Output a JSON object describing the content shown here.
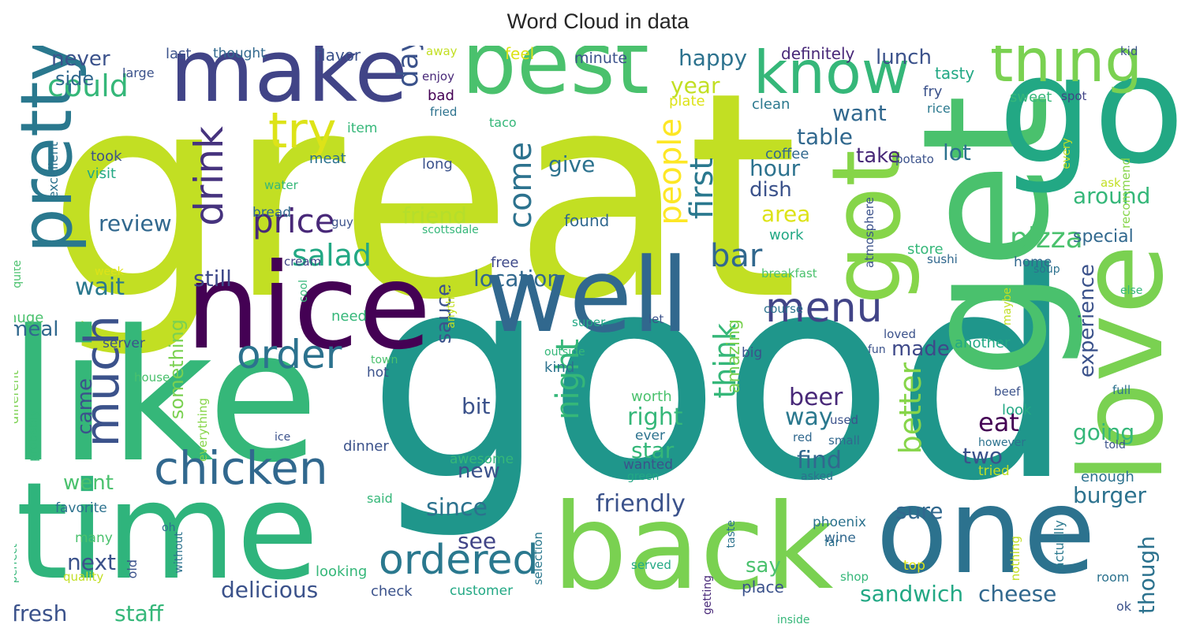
{
  "chart_data": {
    "type": "wordcloud",
    "title": "Word Cloud in data",
    "background": "#ffffff",
    "colormap": "viridis",
    "words": [
      {
        "text": "great",
        "weight": 1.0,
        "color": "#c2df23"
      },
      {
        "text": "good",
        "weight": 0.98,
        "color": "#1f968b"
      },
      {
        "text": "like",
        "weight": 0.62,
        "color": "#35b779"
      },
      {
        "text": "get",
        "weight": 0.58,
        "color": "#4ac16d"
      },
      {
        "text": "go",
        "weight": 0.5,
        "color": "#22a884"
      },
      {
        "text": "nice",
        "weight": 0.5,
        "color": "#440154"
      },
      {
        "text": "time",
        "weight": 0.5,
        "color": "#2fb47c"
      },
      {
        "text": "one",
        "weight": 0.48,
        "color": "#2c728e"
      },
      {
        "text": "back",
        "weight": 0.45,
        "color": "#7ad151"
      },
      {
        "text": "well",
        "weight": 0.42,
        "color": "#31688e"
      },
      {
        "text": "make",
        "weight": 0.4,
        "color": "#414487"
      },
      {
        "text": "best",
        "weight": 0.4,
        "color": "#4ac16d"
      },
      {
        "text": "love",
        "weight": 0.38,
        "color": "#7ad151"
      },
      {
        "text": "got",
        "weight": 0.36,
        "color": "#86d549"
      },
      {
        "text": "know",
        "weight": 0.24,
        "color": "#35b779"
      },
      {
        "text": "thing",
        "weight": 0.24,
        "color": "#7ad151"
      },
      {
        "text": "pretty",
        "weight": 0.2,
        "color": "#2a788e"
      },
      {
        "text": "much",
        "weight": 0.2,
        "color": "#3b528b"
      },
      {
        "text": "try",
        "weight": 0.18,
        "color": "#dde318"
      },
      {
        "text": "chicken",
        "weight": 0.18,
        "color": "#31688e"
      },
      {
        "text": "drink",
        "weight": 0.16,
        "color": "#46337e"
      },
      {
        "text": "ordered",
        "weight": 0.16,
        "color": "#2a788e"
      },
      {
        "text": "order",
        "weight": 0.14,
        "color": "#2c728e"
      },
      {
        "text": "menu",
        "weight": 0.14,
        "color": "#414487"
      },
      {
        "text": "could",
        "weight": 0.12,
        "color": "#35b779"
      },
      {
        "text": "price",
        "weight": 0.12,
        "color": "#482878"
      },
      {
        "text": "salad",
        "weight": 0.12,
        "color": "#22a884"
      },
      {
        "text": "bar",
        "weight": 0.12,
        "color": "#31688e"
      },
      {
        "text": "people",
        "weight": 0.12,
        "color": "#fde725"
      },
      {
        "text": "first",
        "weight": 0.12,
        "color": "#2a788e"
      },
      {
        "text": "pizza",
        "weight": 0.11,
        "color": "#4ac16d"
      },
      {
        "text": "think",
        "weight": 0.11,
        "color": "#35b779"
      },
      {
        "text": "night",
        "weight": 0.11,
        "color": "#35b779"
      },
      {
        "text": "better",
        "weight": 0.11,
        "color": "#86d549"
      },
      {
        "text": "come",
        "weight": 0.1,
        "color": "#2c728e"
      },
      {
        "text": "day",
        "weight": 0.09,
        "color": "#3b528b"
      },
      {
        "text": "friendly",
        "weight": 0.09,
        "color": "#3b528b"
      },
      {
        "text": "delicious",
        "weight": 0.08,
        "color": "#3b528b"
      },
      {
        "text": "sandwich",
        "weight": 0.08,
        "color": "#22a884"
      },
      {
        "text": "cheese",
        "weight": 0.08,
        "color": "#31688e"
      },
      {
        "text": "since",
        "weight": 0.08,
        "color": "#2c728e"
      },
      {
        "text": "happy",
        "weight": 0.08,
        "color": "#2c728e"
      },
      {
        "text": "lunch",
        "weight": 0.08,
        "color": "#3b528b"
      },
      {
        "text": "never",
        "weight": 0.08,
        "color": "#3b528b"
      },
      {
        "text": "side",
        "weight": 0.07,
        "color": "#31688e"
      },
      {
        "text": "want",
        "weight": 0.08,
        "color": "#31688e"
      },
      {
        "text": "table",
        "weight": 0.08,
        "color": "#31688e"
      },
      {
        "text": "year",
        "weight": 0.08,
        "color": "#c2df23"
      },
      {
        "text": "give",
        "weight": 0.08,
        "color": "#2c728e"
      },
      {
        "text": "friend",
        "weight": 0.08,
        "color": "#b5de2b"
      },
      {
        "text": "review",
        "weight": 0.08,
        "color": "#31688e"
      },
      {
        "text": "wait",
        "weight": 0.08,
        "color": "#2a788e"
      },
      {
        "text": "still",
        "weight": 0.08,
        "color": "#3e4989"
      },
      {
        "text": "location",
        "weight": 0.08,
        "color": "#31688e"
      },
      {
        "text": "hour",
        "weight": 0.08,
        "color": "#2c728e"
      },
      {
        "text": "lot",
        "weight": 0.08,
        "color": "#2c728e"
      },
      {
        "text": "take",
        "weight": 0.07,
        "color": "#482878"
      },
      {
        "text": "dish",
        "weight": 0.07,
        "color": "#3b528b"
      },
      {
        "text": "area",
        "weight": 0.08,
        "color": "#dde318"
      },
      {
        "text": "around",
        "weight": 0.08,
        "color": "#35b779"
      },
      {
        "text": "special",
        "weight": 0.06,
        "color": "#31688e"
      },
      {
        "text": "experience",
        "weight": 0.08,
        "color": "#3b528b"
      },
      {
        "text": "beer",
        "weight": 0.08,
        "color": "#482878"
      },
      {
        "text": "way",
        "weight": 0.08,
        "color": "#2a788e"
      },
      {
        "text": "eat",
        "weight": 0.08,
        "color": "#440154"
      },
      {
        "text": "going",
        "weight": 0.08,
        "color": "#35b779"
      },
      {
        "text": "two",
        "weight": 0.08,
        "color": "#3b528b"
      },
      {
        "text": "find",
        "weight": 0.08,
        "color": "#31688e"
      },
      {
        "text": "right",
        "weight": 0.08,
        "color": "#35b779"
      },
      {
        "text": "star",
        "weight": 0.08,
        "color": "#35b779"
      },
      {
        "text": "bit",
        "weight": 0.08,
        "color": "#3b528b"
      },
      {
        "text": "made",
        "weight": 0.07,
        "color": "#3e4989"
      },
      {
        "text": "burger",
        "weight": 0.08,
        "color": "#2c728e"
      },
      {
        "text": "sure",
        "weight": 0.08,
        "color": "#31688e"
      },
      {
        "text": "though",
        "weight": 0.07,
        "color": "#2c728e"
      },
      {
        "text": "came",
        "weight": 0.07,
        "color": "#3b528b"
      },
      {
        "text": "went",
        "weight": 0.07,
        "color": "#4ac16d"
      },
      {
        "text": "sauce",
        "weight": 0.07,
        "color": "#3b528b"
      },
      {
        "text": "something",
        "weight": 0.07,
        "color": "#7ad151"
      },
      {
        "text": "amazing",
        "weight": 0.07,
        "color": "#7ad151"
      },
      {
        "text": "new",
        "weight": 0.07,
        "color": "#3b528b"
      },
      {
        "text": "see",
        "weight": 0.07,
        "color": "#414487"
      },
      {
        "text": "next",
        "weight": 0.07,
        "color": "#3b528b"
      },
      {
        "text": "fresh",
        "weight": 0.07,
        "color": "#3b528b"
      },
      {
        "text": "staff",
        "weight": 0.07,
        "color": "#35b779"
      },
      {
        "text": "say",
        "weight": 0.07,
        "color": "#4ac16d"
      },
      {
        "text": "meal",
        "weight": 0.07,
        "color": "#31688e"
      },
      {
        "text": "place",
        "weight": 0.05,
        "color": "#3b528b"
      },
      {
        "text": "definitely",
        "weight": 0.05,
        "color": "#482878"
      },
      {
        "text": "flavor",
        "weight": 0.05,
        "color": "#3b528b"
      },
      {
        "text": "last",
        "weight": 0.05,
        "color": "#3b528b"
      },
      {
        "text": "thought",
        "weight": 0.04,
        "color": "#31688e"
      },
      {
        "text": "minute",
        "weight": 0.05,
        "color": "#3b528b"
      },
      {
        "text": "feel",
        "weight": 0.05,
        "color": "#dde318"
      },
      {
        "text": "away",
        "weight": 0.04,
        "color": "#c2df23"
      },
      {
        "text": "large",
        "weight": 0.04,
        "color": "#3b528b"
      },
      {
        "text": "enjoy",
        "weight": 0.04,
        "color": "#482878"
      },
      {
        "text": "kid",
        "weight": 0.04,
        "color": "#3b528b"
      },
      {
        "text": "tasty",
        "weight": 0.05,
        "color": "#22a884"
      },
      {
        "text": "plate",
        "weight": 0.05,
        "color": "#dde318"
      },
      {
        "text": "clean",
        "weight": 0.05,
        "color": "#2a788e"
      },
      {
        "text": "bad",
        "weight": 0.05,
        "color": "#440154"
      },
      {
        "text": "fried",
        "weight": 0.04,
        "color": "#2c728e"
      },
      {
        "text": "fry",
        "weight": 0.05,
        "color": "#3b528b"
      },
      {
        "text": "rice",
        "weight": 0.04,
        "color": "#2a788e"
      },
      {
        "text": "sweet",
        "weight": 0.05,
        "color": "#35b779"
      },
      {
        "text": "spot",
        "weight": 0.04,
        "color": "#414487"
      },
      {
        "text": "item",
        "weight": 0.05,
        "color": "#35b779"
      },
      {
        "text": "taco",
        "weight": 0.04,
        "color": "#35b779"
      },
      {
        "text": "coffee",
        "weight": 0.05,
        "color": "#31688e"
      },
      {
        "text": "potato",
        "weight": 0.04,
        "color": "#3b528b"
      },
      {
        "text": "ask",
        "weight": 0.04,
        "color": "#c2df23"
      },
      {
        "text": "every",
        "weight": 0.04,
        "color": "#c2df23"
      },
      {
        "text": "recommend",
        "weight": 0.04,
        "color": "#86d549"
      },
      {
        "text": "took",
        "weight": 0.05,
        "color": "#3b528b"
      },
      {
        "text": "visit",
        "weight": 0.05,
        "color": "#22a884"
      },
      {
        "text": "meat",
        "weight": 0.05,
        "color": "#2c728e"
      },
      {
        "text": "long",
        "weight": 0.05,
        "color": "#3b528b"
      },
      {
        "text": "water",
        "weight": 0.04,
        "color": "#35b779"
      },
      {
        "text": "excellent",
        "weight": 0.04,
        "color": "#2c728e"
      },
      {
        "text": "bread",
        "weight": 0.05,
        "color": "#31688e"
      },
      {
        "text": "guy",
        "weight": 0.04,
        "color": "#3b528b"
      },
      {
        "text": "scottsdale",
        "weight": 0.04,
        "color": "#35b779"
      },
      {
        "text": "found",
        "weight": 0.05,
        "color": "#31688e"
      },
      {
        "text": "work",
        "weight": 0.05,
        "color": "#22a884"
      },
      {
        "text": "atmosphere",
        "weight": 0.04,
        "color": "#3b528b"
      },
      {
        "text": "store",
        "weight": 0.05,
        "color": "#35b779"
      },
      {
        "text": "sushi",
        "weight": 0.04,
        "color": "#31688e"
      },
      {
        "text": "home",
        "weight": 0.05,
        "color": "#31688e"
      },
      {
        "text": "soup",
        "weight": 0.04,
        "color": "#2c728e"
      },
      {
        "text": "cream",
        "weight": 0.04,
        "color": "#414487"
      },
      {
        "text": "quite",
        "weight": 0.04,
        "color": "#4ac16d"
      },
      {
        "text": "week",
        "weight": 0.04,
        "color": "#dde318"
      },
      {
        "text": "free",
        "weight": 0.05,
        "color": "#3e4989"
      },
      {
        "text": "breakfast",
        "weight": 0.04,
        "color": "#4ac16d"
      },
      {
        "text": "else",
        "weight": 0.04,
        "color": "#35b779"
      },
      {
        "text": "anything",
        "weight": 0.04,
        "color": "#c2df23"
      },
      {
        "text": "cool",
        "weight": 0.04,
        "color": "#35b779"
      },
      {
        "text": "need",
        "weight": 0.05,
        "color": "#35b779"
      },
      {
        "text": "huge",
        "weight": 0.05,
        "color": "#4ac16d"
      },
      {
        "text": "maybe",
        "weight": 0.04,
        "color": "#c2df23"
      },
      {
        "text": "course",
        "weight": 0.04,
        "color": "#2c728e"
      },
      {
        "text": "super",
        "weight": 0.04,
        "color": "#22a884"
      },
      {
        "text": "let",
        "weight": 0.04,
        "color": "#3b528b"
      },
      {
        "text": "server",
        "weight": 0.05,
        "color": "#3b528b"
      },
      {
        "text": "outside",
        "weight": 0.04,
        "color": "#35b779"
      },
      {
        "text": "loved",
        "weight": 0.04,
        "color": "#3b528b"
      },
      {
        "text": "another",
        "weight": 0.05,
        "color": "#22a884"
      },
      {
        "text": "big",
        "weight": 0.05,
        "color": "#3b528b"
      },
      {
        "text": "fun",
        "weight": 0.04,
        "color": "#3b528b"
      },
      {
        "text": "town",
        "weight": 0.04,
        "color": "#4ac16d"
      },
      {
        "text": "kind",
        "weight": 0.05,
        "color": "#2c728e"
      },
      {
        "text": "hot",
        "weight": 0.05,
        "color": "#3b528b"
      },
      {
        "text": "house",
        "weight": 0.04,
        "color": "#4ac16d"
      },
      {
        "text": "different",
        "weight": 0.04,
        "color": "#7ad151"
      },
      {
        "text": "worth",
        "weight": 0.05,
        "color": "#4ac16d"
      },
      {
        "text": "full",
        "weight": 0.04,
        "color": "#2c728e"
      },
      {
        "text": "beef",
        "weight": 0.04,
        "color": "#3b528b"
      },
      {
        "text": "look",
        "weight": 0.05,
        "color": "#22a884"
      },
      {
        "text": "used",
        "weight": 0.04,
        "color": "#3b528b"
      },
      {
        "text": "red",
        "weight": 0.04,
        "color": "#31688e"
      },
      {
        "text": "small",
        "weight": 0.04,
        "color": "#31688e"
      },
      {
        "text": "ever",
        "weight": 0.04,
        "color": "#2c728e"
      },
      {
        "text": "wanted",
        "weight": 0.04,
        "color": "#3b528b"
      },
      {
        "text": "green",
        "weight": 0.04,
        "color": "#22a884"
      },
      {
        "text": "asked",
        "weight": 0.04,
        "color": "#2c728e"
      },
      {
        "text": "however",
        "weight": 0.04,
        "color": "#2c728e"
      },
      {
        "text": "told",
        "weight": 0.04,
        "color": "#3b528b"
      },
      {
        "text": "tried",
        "weight": 0.05,
        "color": "#c2df23"
      },
      {
        "text": "enough",
        "weight": 0.05,
        "color": "#2c728e"
      },
      {
        "text": "probably",
        "weight": 0.04,
        "color": "#35b779"
      },
      {
        "text": "everything",
        "weight": 0.04,
        "color": "#86d549"
      },
      {
        "text": "ice",
        "weight": 0.04,
        "color": "#3b528b"
      },
      {
        "text": "dinner",
        "weight": 0.05,
        "color": "#3b528b"
      },
      {
        "text": "awesome",
        "weight": 0.05,
        "color": "#35b779"
      },
      {
        "text": "said",
        "weight": 0.04,
        "color": "#35b779"
      },
      {
        "text": "favorite",
        "weight": 0.05,
        "color": "#2c728e"
      },
      {
        "text": "oh",
        "weight": 0.04,
        "color": "#2c728e"
      },
      {
        "text": "many",
        "weight": 0.05,
        "color": "#4ac16d"
      },
      {
        "text": "perfect",
        "weight": 0.04,
        "color": "#35b779"
      },
      {
        "text": "quality",
        "weight": 0.04,
        "color": "#c2df23"
      },
      {
        "text": "old",
        "weight": 0.04,
        "color": "#3b528b"
      },
      {
        "text": "without",
        "weight": 0.04,
        "color": "#2c728e"
      },
      {
        "text": "looking",
        "weight": 0.05,
        "color": "#35b779"
      },
      {
        "text": "check",
        "weight": 0.05,
        "color": "#3b528b"
      },
      {
        "text": "customer",
        "weight": 0.05,
        "color": "#22a884"
      },
      {
        "text": "selection",
        "weight": 0.04,
        "color": "#2a788e"
      },
      {
        "text": "taste",
        "weight": 0.04,
        "color": "#2c728e"
      },
      {
        "text": "far",
        "weight": 0.04,
        "color": "#2c728e"
      },
      {
        "text": "served",
        "weight": 0.04,
        "color": "#22a884"
      },
      {
        "text": "getting",
        "weight": 0.04,
        "color": "#482878"
      },
      {
        "text": "phoenix",
        "weight": 0.05,
        "color": "#2c728e"
      },
      {
        "text": "wine",
        "weight": 0.05,
        "color": "#31688e"
      },
      {
        "text": "top",
        "weight": 0.05,
        "color": "#dde318"
      },
      {
        "text": "shop",
        "weight": 0.04,
        "color": "#35b779"
      },
      {
        "text": "nothing",
        "weight": 0.04,
        "color": "#c2df23"
      },
      {
        "text": "actually",
        "weight": 0.05,
        "color": "#2a788e"
      },
      {
        "text": "room",
        "weight": 0.05,
        "color": "#2c728e"
      },
      {
        "text": "ok",
        "weight": 0.04,
        "color": "#3b528b"
      },
      {
        "text": "inside",
        "weight": 0.04,
        "color": "#35b779"
      }
    ]
  }
}
